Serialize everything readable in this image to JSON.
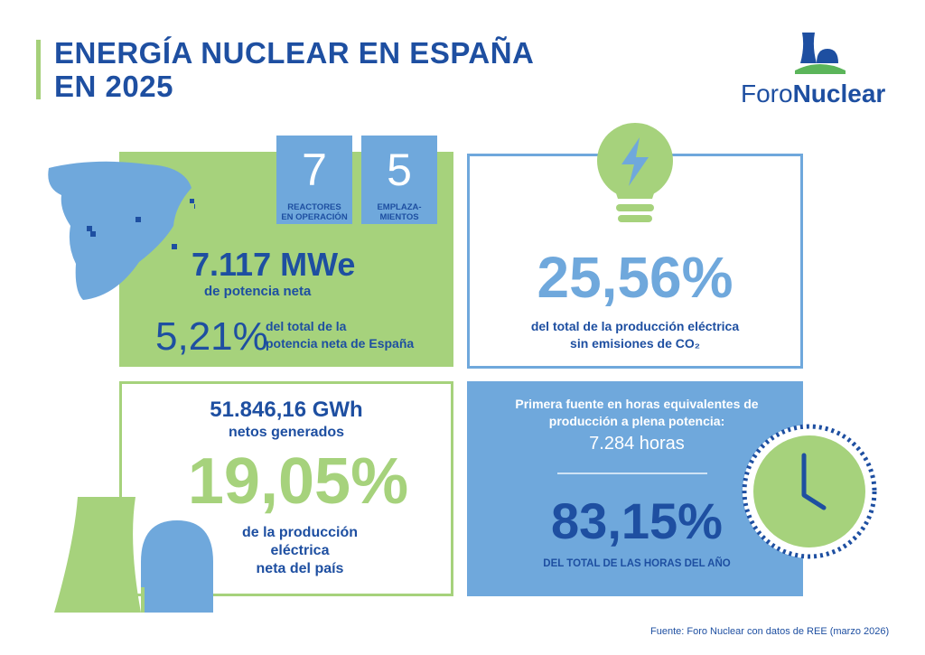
{
  "header": {
    "title_line1": "ENERGÍA NUCLEAR EN ESPAÑA",
    "title_line2": "EN 2025"
  },
  "logo": {
    "name_part1": "Foro",
    "name_part2": "Nuclear",
    "icon": "nuclear-plant-logo-icon"
  },
  "capacity": {
    "reactors_value": "7",
    "reactors_label_line1": "REACTORES",
    "reactors_label_line2": "EN OPERACIÓN",
    "sites_value": "5",
    "sites_label_line1": "EMPLAZA-",
    "sites_label_line2": "MIENTOS",
    "power_value": "7.117 MWe",
    "power_label": "de potencia neta",
    "share_value": "5,21%",
    "share_label_line1": "del total de la",
    "share_label_line2": "potencia neta de España"
  },
  "emissions": {
    "value": "25,56%",
    "label_line1": "del total de la producción eléctrica",
    "label_line2": "sin emisiones de CO₂",
    "icon": "lightbulb-bolt-icon"
  },
  "generation": {
    "gwh_value": "51.846,16 GWh",
    "gwh_label": "netos generados",
    "share_value": "19,05%",
    "share_label_line1": "de la producción",
    "share_label_line2": "eléctrica",
    "share_label_line3": "neta del país",
    "icon": "cooling-tower-icon"
  },
  "hours": {
    "heading_line1": "Primera fuente en horas equivalentes de",
    "heading_line2": "producción a plena potencia:",
    "hours_value": "7.284 horas",
    "share_value": "83,15%",
    "share_label": "DEL TOTAL DE LAS HORAS DEL AÑO",
    "icon": "clock-icon"
  },
  "footer": {
    "source": "Fuente: Foro Nuclear con datos de REE (marzo 2026)"
  },
  "colors": {
    "dark_blue": "#1e4fa1",
    "light_blue": "#6fa8dc",
    "green": "#a6d27c",
    "logo_green": "#5bb55a"
  }
}
